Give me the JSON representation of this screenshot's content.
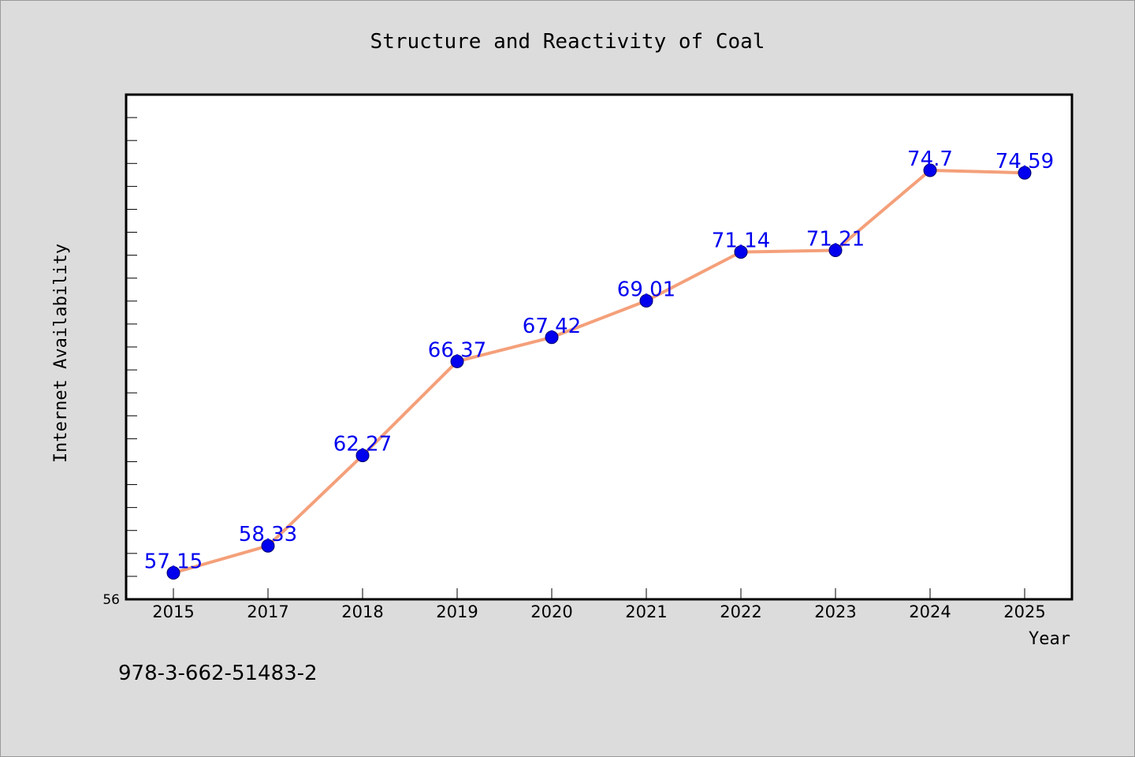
{
  "footer_code": "978-3-662-51483-2",
  "colors": {
    "background": "#dcdcdc",
    "plot_background": "#ffffff",
    "line": "#f4a07a",
    "marker": "#0000ee",
    "data_label": "#0000ee",
    "text": "#000000"
  },
  "chart_data": {
    "type": "line",
    "title": "Structure and Reactivity of Coal",
    "xlabel": "Year",
    "ylabel": "Internet Availability",
    "categories": [
      "2015",
      "2017",
      "2018",
      "2019",
      "2020",
      "2021",
      "2022",
      "2023",
      "2024",
      "2025"
    ],
    "series": [
      {
        "values": [
          57.15,
          58.33,
          62.27,
          66.37,
          67.42,
          69.01,
          71.14,
          71.21,
          74.7,
          74.59
        ],
        "data_labels": [
          "57.15",
          "58.33",
          "62.27",
          "66.37",
          "67.42",
          "69.01",
          "71.14",
          "71.21",
          "74.7",
          "74.59"
        ]
      }
    ],
    "y_tick_labels": [
      "56"
    ],
    "ylim": [
      56,
      78
    ],
    "minor_tick_step": 1,
    "grid": false,
    "legend": "none"
  }
}
